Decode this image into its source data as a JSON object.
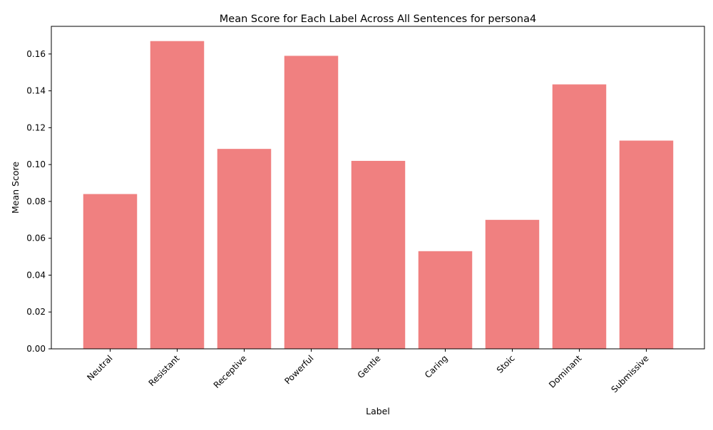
{
  "chart_data": {
    "type": "bar",
    "title": "Mean Score for Each Label Across All Sentences for persona4",
    "xlabel": "Label",
    "ylabel": "Mean Score",
    "categories": [
      "Neutral",
      "Resistant",
      "Receptive",
      "Powerful",
      "Gentle",
      "Caring",
      "Stoic",
      "Dominant",
      "Submissive"
    ],
    "values": [
      0.084,
      0.167,
      0.1085,
      0.159,
      0.102,
      0.053,
      0.07,
      0.1435,
      0.113
    ],
    "ylim": [
      0,
      0.175
    ],
    "yticks": [
      0.0,
      0.02,
      0.04,
      0.06,
      0.08,
      0.1,
      0.12,
      0.14,
      0.16
    ],
    "ytick_labels": [
      "0.00",
      "0.02",
      "0.04",
      "0.06",
      "0.08",
      "0.10",
      "0.12",
      "0.14",
      "0.16"
    ],
    "bar_color": "#f08080",
    "grid": false,
    "legend": "none"
  }
}
